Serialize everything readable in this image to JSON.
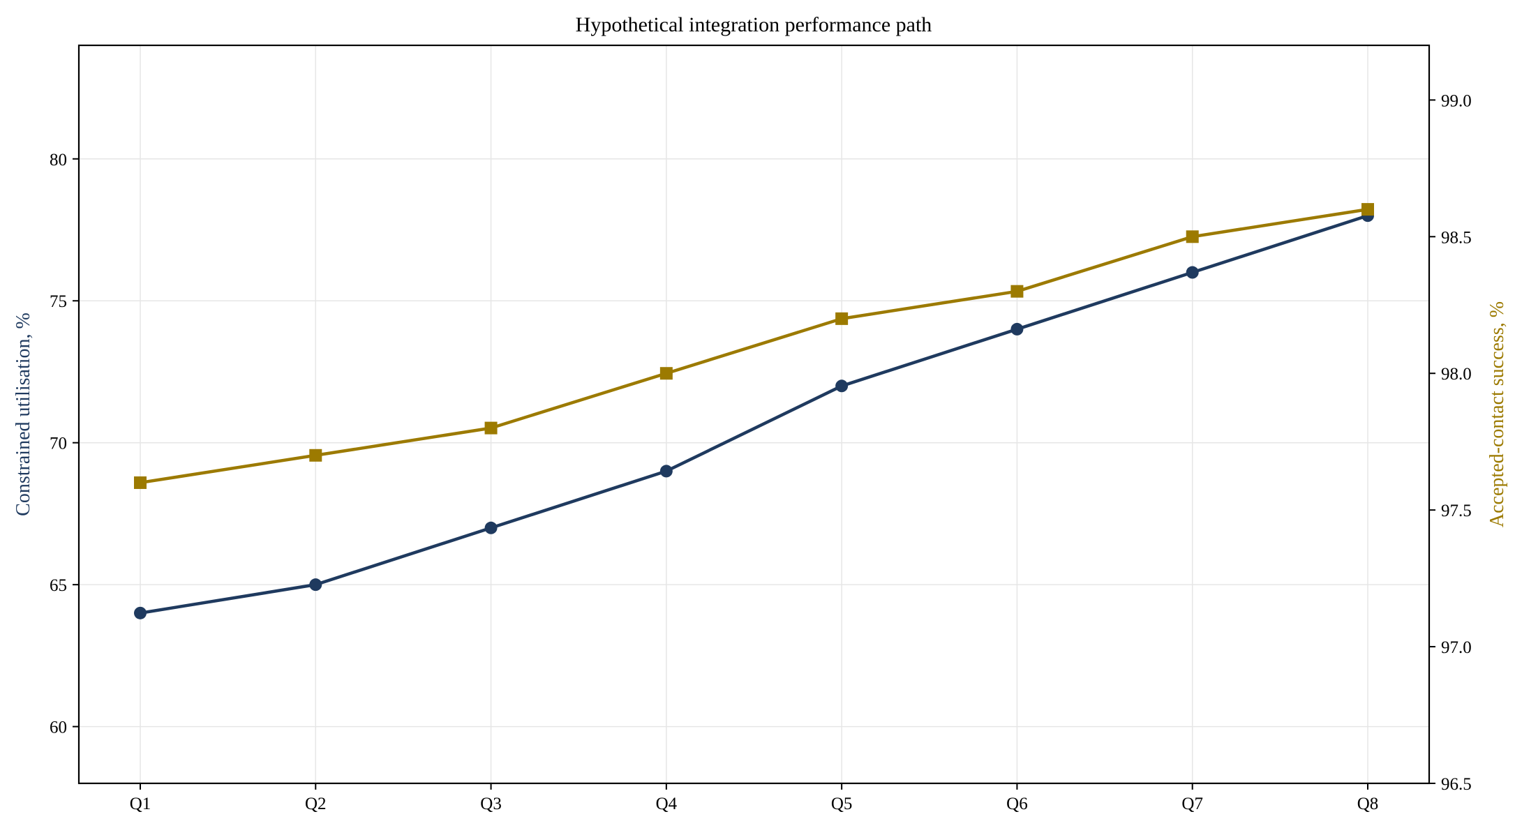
{
  "chart_data": {
    "type": "line",
    "title": "Hypothetical integration performance path",
    "categories": [
      "Q1",
      "Q2",
      "Q3",
      "Q4",
      "Q5",
      "Q6",
      "Q7",
      "Q8"
    ],
    "y_left": {
      "label": "Constrained utilisation, %",
      "range": [
        58,
        84
      ],
      "ticks": [
        60,
        65,
        70,
        75,
        80
      ],
      "color": "#1f3a5f"
    },
    "y_right": {
      "label": "Accepted-contact success, %",
      "range": [
        96.5,
        99.2
      ],
      "ticks": [
        "96.5",
        "97.0",
        "97.5",
        "98.0",
        "98.5",
        "99.0"
      ],
      "color": "#9c7a00"
    },
    "series": [
      {
        "axis": "left",
        "marker": "circle",
        "color": "#1f3a5f",
        "values": [
          64,
          65,
          67,
          69,
          72,
          74,
          76,
          78
        ]
      },
      {
        "axis": "right",
        "marker": "square",
        "color": "#9c7a00",
        "values": [
          97.6,
          97.7,
          97.8,
          98.0,
          98.2,
          98.3,
          98.5,
          98.6
        ]
      }
    ],
    "grid": true,
    "legend": "none"
  }
}
